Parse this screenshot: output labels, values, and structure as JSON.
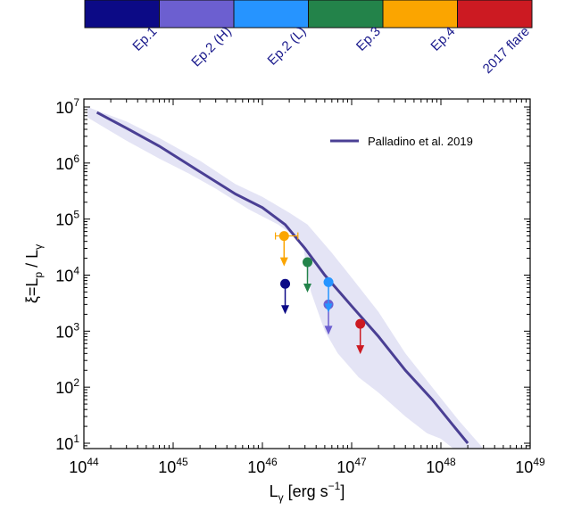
{
  "chart_data": {
    "type": "scatter",
    "xlabel": "L",
    "xlabel_sub": "γ",
    "xlabel_unit_pre": " [erg s",
    "xlabel_unit_sup": "−1",
    "xlabel_unit_post": "]",
    "ylabel": "ξ=L",
    "ylabel_sub1": "p",
    "ylabel_mid": " / L",
    "ylabel_sub2": "γ",
    "xscale": "log",
    "yscale": "log",
    "xlim": [
      1e+44,
      1e+49
    ],
    "ylim": [
      5,
      10000000.0
    ],
    "x_ticks": [
      {
        "base": "10",
        "exp": "44",
        "value": 1e+44
      },
      {
        "base": "10",
        "exp": "45",
        "value": 1e+45
      },
      {
        "base": "10",
        "exp": "46",
        "value": 1e+46
      },
      {
        "base": "10",
        "exp": "47",
        "value": 1e+47
      },
      {
        "base": "10",
        "exp": "48",
        "value": 1e+48
      },
      {
        "base": "10",
        "exp": "49",
        "value": 1e+49
      }
    ],
    "y_ticks": [
      {
        "base": "10",
        "exp": "1",
        "value": 10.0
      },
      {
        "base": "10",
        "exp": "2",
        "value": 100.0
      },
      {
        "base": "10",
        "exp": "3",
        "value": 1000.0
      },
      {
        "base": "10",
        "exp": "4",
        "value": 10000.0
      },
      {
        "base": "10",
        "exp": "5",
        "value": 100000.0
      },
      {
        "base": "10",
        "exp": "6",
        "value": 1000000.0
      },
      {
        "base": "10",
        "exp": "7",
        "value": 10000000.0
      }
    ],
    "model": {
      "name": "Palladino et al. 2019",
      "color": "#4a3f94",
      "band_color": "#e4e4f5",
      "line": [
        [
          1.4e+44,
          8000000.0
        ],
        [
          3e+44,
          4200000.0
        ],
        [
          7e+44,
          2000000.0
        ],
        [
          2e+45,
          700000.0
        ],
        [
          5e+45,
          280000.0
        ],
        [
          1e+46,
          160000.0
        ],
        [
          1.8e+46,
          80000.0
        ],
        [
          3e+46,
          30000.0
        ],
        [
          5e+46,
          10000.0
        ],
        [
          1e+47,
          2800.0
        ],
        [
          2e+47,
          800.0
        ],
        [
          4e+47,
          200.0
        ],
        [
          8e+47,
          60.0
        ],
        [
          1.4e+48,
          20.0
        ],
        [
          2e+48,
          10.0
        ]
      ],
      "band_upper": [
        [
          1.1e+44,
          10000000.0
        ],
        [
          3e+44,
          5500000.0
        ],
        [
          7e+44,
          2800000.0
        ],
        [
          2e+45,
          1100000.0
        ],
        [
          5e+45,
          420000.0
        ],
        [
          1e+46,
          250000.0
        ],
        [
          2e+46,
          130000.0
        ],
        [
          3.2e+46,
          80000.0
        ],
        [
          6e+46,
          25000.0
        ],
        [
          1e+47,
          9000.0
        ],
        [
          2e+47,
          2200.0
        ],
        [
          4e+47,
          400.0
        ],
        [
          8e+47,
          100.0
        ],
        [
          1.6e+48,
          25.0
        ],
        [
          3e+48,
          8.0
        ]
      ],
      "band_lower": [
        [
          2e+48,
          5.0
        ],
        [
          1e+48,
          12.0
        ],
        [
          7e+47,
          15.0
        ],
        [
          4e+47,
          30.0
        ],
        [
          2e+47,
          80.0
        ],
        [
          1.2e+47,
          150.0
        ],
        [
          7e+46,
          400.0
        ],
        [
          5e+46,
          1000.0
        ],
        [
          3.5e+46,
          5000.0
        ],
        [
          2.8e+46,
          40000.0
        ],
        [
          1.5e+46,
          80000.0
        ],
        [
          7e+45,
          150000.0
        ],
        [
          3e+45,
          350000.0
        ],
        [
          1.5e+45,
          650000.0
        ],
        [
          7e+44,
          1200000.0
        ],
        [
          3e+44,
          2500000.0
        ],
        [
          1.1e+44,
          6500000.0
        ]
      ]
    },
    "series": [
      {
        "name": "Ep.1",
        "color": "#0c0a86",
        "x": 1.8e+46,
        "y": 7000.0,
        "upper_limit": true
      },
      {
        "name": "Ep.2 (H)",
        "color": "#6c5fd0",
        "x": 5.5e+46,
        "y": 3000.0,
        "upper_limit": true
      },
      {
        "name": "Ep.2 (L)",
        "color": "#2694ff",
        "x": 5.5e+46,
        "y": 7500.0,
        "upper_limit": true
      },
      {
        "name": "Ep.3",
        "color": "#23834a",
        "x": 3.2e+46,
        "y": 17000.0,
        "upper_limit": true
      },
      {
        "name": "Ep.4",
        "color": "#fba500",
        "x": 1.75e+46,
        "y": 50000.0,
        "upper_limit": true,
        "xerr": [
          1.4e+46,
          2.5e+46
        ]
      },
      {
        "name": "2017 flare",
        "color": "#cc1a22",
        "x": 1.25e+47,
        "y": 1350.0,
        "upper_limit": true
      }
    ],
    "legend_position": "top-right"
  }
}
